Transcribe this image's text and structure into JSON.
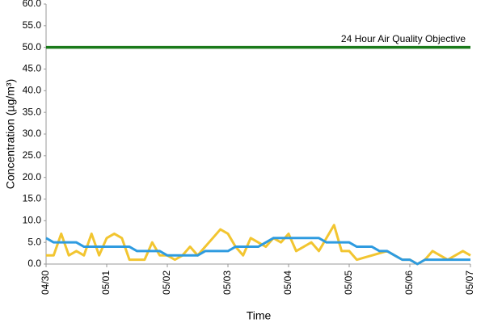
{
  "chart_data": {
    "type": "line",
    "y_label": "Concentration (µg/m³)",
    "x_label": "Time",
    "x": [
      0,
      3,
      6,
      9,
      12,
      15,
      18,
      21,
      24,
      27,
      30,
      33,
      36,
      39,
      42,
      45,
      48,
      51,
      54,
      57,
      60,
      63,
      66,
      69,
      72,
      75,
      78,
      81,
      84,
      87,
      90,
      93,
      96,
      99,
      102,
      105,
      108,
      111,
      114,
      117,
      120,
      123,
      126,
      129,
      132,
      135,
      138,
      141,
      144,
      147,
      150,
      153,
      156,
      159,
      162,
      165,
      168
    ],
    "series": [
      {
        "color": "#f2c530",
        "values": [
          2,
          2,
          7,
          2,
          3,
          2,
          7,
          2,
          6,
          7,
          6,
          1,
          1,
          1,
          5,
          2,
          2,
          1,
          2,
          4,
          2,
          4,
          6,
          8,
          7,
          4,
          2,
          6,
          5,
          4,
          6,
          5,
          7,
          3,
          4,
          5,
          3,
          6,
          9,
          3,
          3,
          1,
          1.5,
          2,
          2.5,
          3,
          2,
          1,
          1,
          0,
          1,
          3,
          2,
          1,
          2,
          3,
          2
        ]
      },
      {
        "color": "#2e9be0",
        "values": [
          6,
          5,
          5,
          5,
          5,
          4,
          4,
          4,
          4,
          4,
          4,
          4,
          3,
          3,
          3,
          3,
          2,
          2,
          2,
          2,
          2,
          3,
          3,
          3,
          3,
          4,
          4,
          4,
          4,
          5,
          6,
          6,
          6,
          6,
          6,
          6,
          6,
          5,
          5,
          5,
          5,
          4,
          4,
          4,
          3,
          3,
          2,
          1,
          1,
          0,
          1,
          1,
          1,
          1,
          1,
          1,
          1
        ]
      }
    ],
    "reference_line": {
      "value": 50,
      "label": "24 Hour Air Quality Objective",
      "color": "#1a7a1a"
    },
    "xlim": [
      0,
      168
    ],
    "xticks": [
      {
        "value": 0,
        "label": "04/30"
      },
      {
        "value": 24,
        "label": "05/01"
      },
      {
        "value": 48,
        "label": "05/02"
      },
      {
        "value": 72,
        "label": "05/03"
      },
      {
        "value": 96,
        "label": "05/04"
      },
      {
        "value": 120,
        "label": "05/05"
      },
      {
        "value": 144,
        "label": "05/06"
      },
      {
        "value": 168,
        "label": "05/07"
      }
    ],
    "ylim": [
      0,
      60
    ],
    "yticks": [
      {
        "value": 0,
        "label": "0.0"
      },
      {
        "value": 5,
        "label": "5.0"
      },
      {
        "value": 10,
        "label": "10.0"
      },
      {
        "value": 15,
        "label": "15.0"
      },
      {
        "value": 20,
        "label": "20.0"
      },
      {
        "value": 25,
        "label": "25.0"
      },
      {
        "value": 30,
        "label": "30.0"
      },
      {
        "value": 35,
        "label": "35.0"
      },
      {
        "value": 40,
        "label": "40.0"
      },
      {
        "value": 45,
        "label": "45.0"
      },
      {
        "value": 50,
        "label": "50.0"
      },
      {
        "value": 55,
        "label": "55.0"
      },
      {
        "value": 60,
        "label": "60.0"
      }
    ],
    "grid": false
  }
}
